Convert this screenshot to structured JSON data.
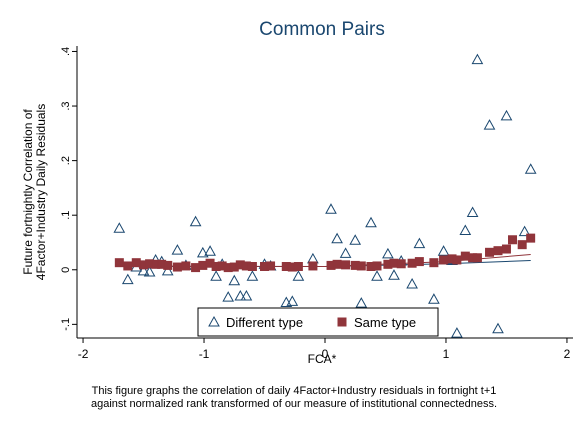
{
  "chart_data": {
    "type": "scatter",
    "title": "Common Pairs",
    "xlabel": "FCA*",
    "ylabel": [
      "Future fortnightly Correlation of",
      "4Factor+Industry Daily Residuals"
    ],
    "xlim": [
      -2.05,
      2.05
    ],
    "ylim": [
      -0.125,
      0.41
    ],
    "x_ticks": [
      {
        "value": -2,
        "label": "-2"
      },
      {
        "value": -1,
        "label": "-1"
      },
      {
        "value": 0,
        "label": "0"
      },
      {
        "value": 1,
        "label": "1"
      },
      {
        "value": 2,
        "label": "2"
      }
    ],
    "y_ticks": [
      {
        "value": -0.1,
        "label": "-.1"
      },
      {
        "value": 0,
        "label": "0"
      },
      {
        "value": 0.1,
        "label": ".1"
      },
      {
        "value": 0.2,
        "label": ".2"
      },
      {
        "value": 0.3,
        "label": ".3"
      },
      {
        "value": 0.4,
        "label": ".4"
      }
    ],
    "grid": false,
    "legend_position": "bottom-center",
    "series": [
      {
        "name": "Different type",
        "marker": "triangle-hollow",
        "color": "#1a476f",
        "points": [
          [
            -1.7,
            0.076
          ],
          [
            -1.63,
            -0.018
          ],
          [
            -1.56,
            0.005
          ],
          [
            -1.5,
            -0.002
          ],
          [
            -1.45,
            -0.004
          ],
          [
            -1.4,
            0.018
          ],
          [
            -1.35,
            0.015
          ],
          [
            -1.3,
            -0.002
          ],
          [
            -1.22,
            0.036
          ],
          [
            -1.15,
            0.008
          ],
          [
            -1.07,
            0.088
          ],
          [
            -1.01,
            0.031
          ],
          [
            -0.95,
            0.034
          ],
          [
            -0.9,
            -0.012
          ],
          [
            -0.85,
            0.01
          ],
          [
            -0.8,
            -0.05
          ],
          [
            -0.75,
            -0.02
          ],
          [
            -0.7,
            -0.048
          ],
          [
            -0.65,
            -0.048
          ],
          [
            -0.6,
            -0.012
          ],
          [
            -0.5,
            0.01
          ],
          [
            -0.45,
            0.007
          ],
          [
            -0.32,
            -0.06
          ],
          [
            -0.27,
            -0.058
          ],
          [
            -0.22,
            -0.012
          ],
          [
            -0.1,
            0.02
          ],
          [
            0.05,
            0.111
          ],
          [
            0.1,
            0.057
          ],
          [
            0.17,
            0.03
          ],
          [
            0.25,
            0.054
          ],
          [
            0.3,
            -0.061
          ],
          [
            0.38,
            0.086
          ],
          [
            0.43,
            -0.012
          ],
          [
            0.52,
            0.029
          ],
          [
            0.57,
            -0.01
          ],
          [
            0.63,
            0.016
          ],
          [
            0.72,
            -0.026
          ],
          [
            0.78,
            0.048
          ],
          [
            0.9,
            -0.054
          ],
          [
            0.98,
            0.034
          ],
          [
            1.05,
            0.017
          ],
          [
            1.09,
            -0.116
          ],
          [
            1.16,
            0.072
          ],
          [
            1.22,
            0.105
          ],
          [
            1.26,
            0.385
          ],
          [
            1.36,
            0.265
          ],
          [
            1.43,
            -0.108
          ],
          [
            1.5,
            0.282
          ],
          [
            1.65,
            0.07
          ],
          [
            1.7,
            0.184
          ]
        ]
      },
      {
        "name": "Same type",
        "marker": "square-filled",
        "color": "#90353b",
        "points": [
          [
            -1.7,
            0.013
          ],
          [
            -1.63,
            0.007
          ],
          [
            -1.56,
            0.013
          ],
          [
            -1.5,
            0.009
          ],
          [
            -1.45,
            0.011
          ],
          [
            -1.4,
            0.01
          ],
          [
            -1.35,
            0.01
          ],
          [
            -1.3,
            0.008
          ],
          [
            -1.22,
            0.005
          ],
          [
            -1.15,
            0.007
          ],
          [
            -1.07,
            0.004
          ],
          [
            -1.01,
            0.008
          ],
          [
            -0.95,
            0.012
          ],
          [
            -0.9,
            0.006
          ],
          [
            -0.85,
            0.007
          ],
          [
            -0.8,
            0.004
          ],
          [
            -0.75,
            0.005
          ],
          [
            -0.7,
            0.009
          ],
          [
            -0.65,
            0.007
          ],
          [
            -0.6,
            0.006
          ],
          [
            -0.5,
            0.006
          ],
          [
            -0.45,
            0.007
          ],
          [
            -0.32,
            0.006
          ],
          [
            -0.27,
            0.005
          ],
          [
            -0.22,
            0.006
          ],
          [
            -0.1,
            0.007
          ],
          [
            0.05,
            0.008
          ],
          [
            0.1,
            0.01
          ],
          [
            0.17,
            0.009
          ],
          [
            0.25,
            0.008
          ],
          [
            0.3,
            0.007
          ],
          [
            0.38,
            0.006
          ],
          [
            0.43,
            0.007
          ],
          [
            0.52,
            0.01
          ],
          [
            0.57,
            0.012
          ],
          [
            0.63,
            0.011
          ],
          [
            0.72,
            0.012
          ],
          [
            0.78,
            0.015
          ],
          [
            0.9,
            0.013
          ],
          [
            0.98,
            0.018
          ],
          [
            1.05,
            0.02
          ],
          [
            1.09,
            0.018
          ],
          [
            1.16,
            0.025
          ],
          [
            1.22,
            0.022
          ],
          [
            1.26,
            0.022
          ],
          [
            1.36,
            0.032
          ],
          [
            1.43,
            0.035
          ],
          [
            1.5,
            0.038
          ],
          [
            1.55,
            0.055
          ],
          [
            1.63,
            0.046
          ],
          [
            1.7,
            0.058
          ]
        ]
      }
    ],
    "fit_lines": [
      {
        "color": "#1a476f",
        "points": [
          [
            -1.7,
            0.006
          ],
          [
            0.0,
            0.006
          ],
          [
            1.0,
            0.011
          ],
          [
            1.7,
            0.017
          ]
        ]
      },
      {
        "color": "#90353b",
        "points": [
          [
            -1.7,
            0.007
          ],
          [
            0.0,
            0.006
          ],
          [
            1.0,
            0.015
          ],
          [
            1.7,
            0.028
          ]
        ]
      }
    ]
  },
  "caption": [
    "This figure graphs the correlation of daily 4Factor+Industry residuals in fortnight t+1",
    "against normalized rank transformed of our measure of institutional connectedness."
  ]
}
